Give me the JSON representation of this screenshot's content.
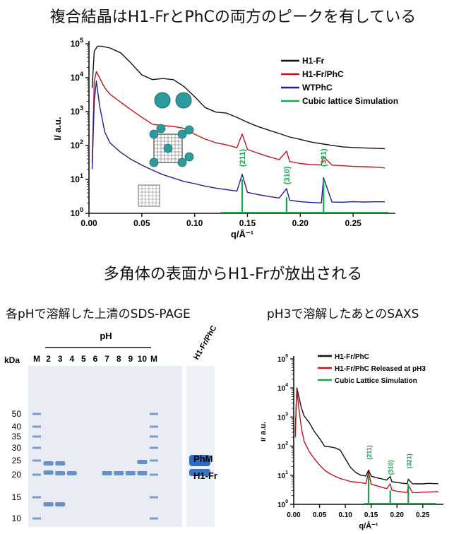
{
  "titles": {
    "top": "複合結晶はH1-FrとPhCの両方のピークを有している",
    "middle": "多角体の表面からH1-Frが放出される",
    "gel": "各pHで溶解した上清のSDS-PAGE",
    "saxs2": "pH3で溶解したあとのSAXS"
  },
  "colors": {
    "black": "#111111",
    "red": "#c0161b",
    "blue": "#1f1f99",
    "green": "#1aa64a",
    "gel_bg": "#e9edf3",
    "band": "#4f7fc4"
  },
  "chart_data": [
    {
      "type": "line",
      "scale": "log-y",
      "xlabel": "q/Å⁻¹",
      "ylabel": "I/ a.u.",
      "xlim": [
        0,
        0.29
      ],
      "ylim": [
        1,
        100000
      ],
      "xticks": [
        {
          "v": 0.0,
          "label": "0.00"
        },
        {
          "v": 0.05,
          "label": "0.05"
        },
        {
          "v": 0.1,
          "label": "0.10"
        },
        {
          "v": 0.15,
          "label": "0.15"
        },
        {
          "v": 0.2,
          "label": "0.20"
        },
        {
          "v": 0.25,
          "label": "0.25"
        }
      ],
      "yticks": [
        {
          "v": 1,
          "base": "10",
          "exp": "0"
        },
        {
          "v": 10,
          "base": "10",
          "exp": "1"
        },
        {
          "v": 100,
          "base": "10",
          "exp": "2"
        },
        {
          "v": 1000,
          "base": "10",
          "exp": "3"
        },
        {
          "v": 10000,
          "base": "10",
          "exp": "4"
        },
        {
          "v": 100000,
          "base": "10",
          "exp": "5"
        }
      ],
      "legend_position": "top-right",
      "series": [
        {
          "name": "H1-Fr",
          "color": "#111111",
          "x": [
            0.003,
            0.005,
            0.008,
            0.012,
            0.02,
            0.03,
            0.04,
            0.05,
            0.06,
            0.07,
            0.08,
            0.09,
            0.1,
            0.11,
            0.12,
            0.13,
            0.14,
            0.15,
            0.16,
            0.17,
            0.18,
            0.19,
            0.2,
            0.21,
            0.22,
            0.23,
            0.24,
            0.25,
            0.26,
            0.27,
            0.28
          ],
          "y": [
            5000,
            60000,
            85000,
            85000,
            75000,
            50000,
            25000,
            12000,
            9000,
            10000,
            9500,
            6000,
            3000,
            1400,
            1000,
            900,
            650,
            450,
            330,
            260,
            210,
            170,
            150,
            130,
            120,
            110,
            100,
            95,
            90,
            85,
            80
          ]
        },
        {
          "name": "H1-Fr/PhC",
          "color": "#c0161b",
          "x": [
            0.003,
            0.005,
            0.007,
            0.01,
            0.015,
            0.02,
            0.03,
            0.04,
            0.05,
            0.06,
            0.07,
            0.08,
            0.09,
            0.1,
            0.11,
            0.12,
            0.13,
            0.14,
            0.145,
            0.15,
            0.16,
            0.17,
            0.18,
            0.187,
            0.19,
            0.2,
            0.21,
            0.22,
            0.222,
            0.23,
            0.24,
            0.25,
            0.26,
            0.27,
            0.28
          ],
          "y": [
            30,
            8000,
            15000,
            10000,
            5000,
            3000,
            1800,
            1100,
            700,
            450,
            420,
            400,
            350,
            230,
            160,
            120,
            100,
            80,
            200,
            70,
            55,
            45,
            38,
            70,
            36,
            32,
            30,
            29,
            50,
            27,
            25,
            23,
            22,
            21,
            20
          ]
        },
        {
          "name": "WTPhC",
          "color": "#1f1f99",
          "x": [
            0.003,
            0.005,
            0.007,
            0.01,
            0.015,
            0.02,
            0.03,
            0.04,
            0.05,
            0.06,
            0.07,
            0.08,
            0.09,
            0.1,
            0.11,
            0.12,
            0.13,
            0.14,
            0.145,
            0.15,
            0.16,
            0.17,
            0.18,
            0.187,
            0.19,
            0.2,
            0.21,
            0.22,
            0.222,
            0.23,
            0.24,
            0.25,
            0.26,
            0.27,
            0.28
          ],
          "y": [
            20,
            2000,
            8000,
            1500,
            250,
            110,
            60,
            38,
            27,
            20,
            15,
            12,
            9.5,
            8,
            6.5,
            5.5,
            4.8,
            4.2,
            13,
            3.8,
            3.3,
            3,
            2.8,
            5.5,
            2.6,
            2.4,
            2.3,
            2.2,
            12,
            2.2,
            2.1,
            2.1,
            2,
            2,
            2
          ]
        },
        {
          "name": "Cubic lattice Simulation",
          "color": "#1aa64a",
          "style": "stick",
          "x": [
            0.145,
            0.187,
            0.222
          ],
          "y": [
            10,
            3,
            10
          ]
        }
      ],
      "peak_labels": [
        "(211)",
        "(310)",
        "(321)"
      ]
    },
    {
      "type": "line",
      "scale": "log-y",
      "xlabel": "q/Å⁻¹",
      "ylabel": "I/ a.u.",
      "xlim": [
        0,
        0.29
      ],
      "ylim": [
        1,
        100000
      ],
      "xticks": [
        {
          "v": 0.0,
          "label": "0.00"
        },
        {
          "v": 0.05,
          "label": "0.05"
        },
        {
          "v": 0.1,
          "label": "0.10"
        },
        {
          "v": 0.15,
          "label": "0.15"
        },
        {
          "v": 0.2,
          "label": "0.20"
        },
        {
          "v": 0.25,
          "label": "0.25"
        }
      ],
      "yticks": [
        {
          "v": 1,
          "base": "10",
          "exp": "0"
        },
        {
          "v": 10,
          "base": "10",
          "exp": "1"
        },
        {
          "v": 100,
          "base": "10",
          "exp": "2"
        },
        {
          "v": 1000,
          "base": "10",
          "exp": "3"
        },
        {
          "v": 10000,
          "base": "10",
          "exp": "4"
        },
        {
          "v": 100000,
          "base": "10",
          "exp": "5"
        }
      ],
      "legend_position": "top-right",
      "series": [
        {
          "name": "H1-Fr/PhC",
          "color": "#111111",
          "x": [
            0.003,
            0.006,
            0.01,
            0.015,
            0.02,
            0.03,
            0.04,
            0.05,
            0.06,
            0.07,
            0.08,
            0.09,
            0.1,
            0.11,
            0.12,
            0.13,
            0.14,
            0.145,
            0.15,
            0.16,
            0.17,
            0.18,
            0.187,
            0.19,
            0.2,
            0.21,
            0.22,
            0.222,
            0.23,
            0.24,
            0.25,
            0.26,
            0.27,
            0.28
          ],
          "y": [
            300,
            10000,
            5000,
            2000,
            1100,
            600,
            300,
            180,
            100,
            100,
            95,
            80,
            40,
            20,
            13,
            10,
            9,
            14,
            8.5,
            7.5,
            7,
            6.5,
            9,
            6.2,
            6,
            5.8,
            5.6,
            8,
            5.4,
            5.2,
            5,
            5,
            4.8,
            4.7
          ]
        },
        {
          "name": "H1-Fr/PhC Released at pH3",
          "color": "#c0161b",
          "x": [
            0.003,
            0.006,
            0.01,
            0.015,
            0.02,
            0.03,
            0.04,
            0.05,
            0.06,
            0.07,
            0.08,
            0.09,
            0.1,
            0.11,
            0.12,
            0.13,
            0.14,
            0.145,
            0.15,
            0.16,
            0.17,
            0.18,
            0.187,
            0.19,
            0.2,
            0.21,
            0.22,
            0.222,
            0.23,
            0.24,
            0.25,
            0.26,
            0.27,
            0.28
          ],
          "y": [
            200,
            9000,
            2000,
            400,
            150,
            60,
            35,
            22,
            15,
            12,
            10,
            8.5,
            7.5,
            6.5,
            6,
            5.5,
            5,
            12,
            4.5,
            4,
            3.6,
            3.3,
            5,
            3.2,
            3,
            2.9,
            2.8,
            5,
            2.7,
            2.6,
            2.6,
            2.5,
            2.5,
            2.5
          ]
        },
        {
          "name": "Cubic Lattice Simulation",
          "color": "#1aa64a",
          "style": "stick",
          "x": [
            0.145,
            0.187,
            0.222
          ],
          "y": [
            10,
            3,
            5
          ]
        }
      ],
      "peak_labels": [
        "(211)",
        "(310)",
        "(321)"
      ]
    }
  ],
  "gel": {
    "ph_label": "pH",
    "kda_label": "kDa",
    "lanes": [
      "M",
      "2",
      "3",
      "4",
      "5",
      "6",
      "7",
      "8",
      "9",
      "10",
      "M"
    ],
    "extra_lane": "H1-Fr/PhC",
    "markers": [
      "50",
      "40",
      "35",
      "30",
      "25",
      "20",
      "15",
      "10"
    ],
    "band_labels": [
      "PhM",
      "H1-Fr"
    ]
  }
}
